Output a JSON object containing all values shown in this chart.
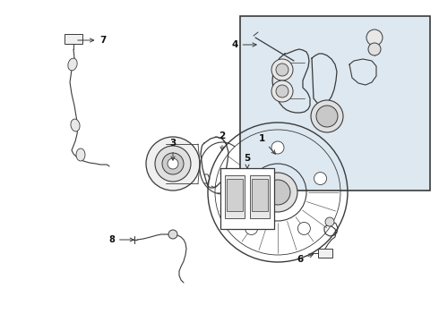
{
  "bg_color": "#ffffff",
  "line_color": "#3a3a3a",
  "box_bg_color": "#dde8f0",
  "box_stroke": "#3a3a3a",
  "label_color": "#111111",
  "fig_width": 4.9,
  "fig_height": 3.6,
  "dpi": 100
}
